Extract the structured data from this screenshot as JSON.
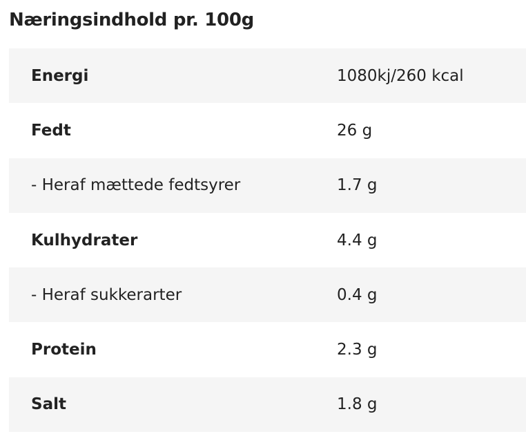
{
  "header": {
    "title": "Næringsindhold pr. 100g"
  },
  "table": {
    "rows": [
      {
        "label": "Energi",
        "value": "1080kj/260 kcal",
        "bold": true
      },
      {
        "label": "Fedt",
        "value": "26 g",
        "bold": true
      },
      {
        "label": "- Heraf mættede fedtsyrer",
        "value": "1.7 g",
        "bold": false
      },
      {
        "label": "Kulhydrater",
        "value": "4.4 g",
        "bold": true
      },
      {
        "label": "- Heraf sukkerarter",
        "value": "0.4 g",
        "bold": false
      },
      {
        "label": "Protein",
        "value": "2.3 g",
        "bold": true
      },
      {
        "label": "Salt",
        "value": "1.8 g",
        "bold": true
      }
    ]
  }
}
